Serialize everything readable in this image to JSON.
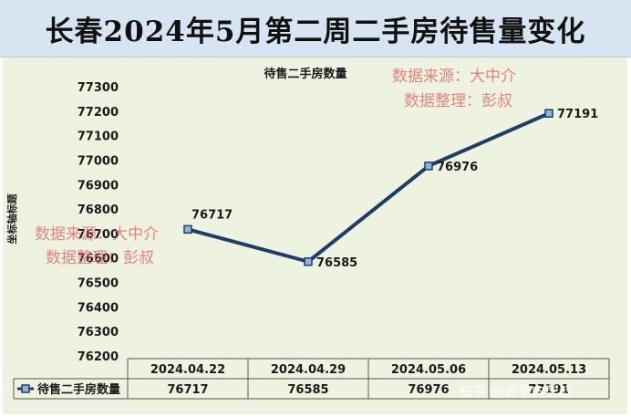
{
  "page_title": "长春2024年5月第二周二手房待售量变化",
  "chart_data": {
    "type": "line",
    "title": "待售二手房数量",
    "ylabel": "坐标轴标题",
    "xlabel": "",
    "categories": [
      "2024.04.22",
      "2024.04.29",
      "2024.05.06",
      "2024.05.13"
    ],
    "series": [
      {
        "name": "待售二手房数量",
        "values": [
          76717,
          76585,
          76976,
          77191
        ],
        "color": "#1f3d66"
      }
    ],
    "ylim": [
      76200,
      77300
    ],
    "yticks": [
      76200,
      76300,
      76400,
      76500,
      76600,
      76700,
      76800,
      76900,
      77000,
      77100,
      77200,
      77300
    ],
    "grid": false,
    "legend": "data-table-left"
  },
  "watermarks": {
    "source_line": "数据来源：大中介",
    "editor_line": "数据整理：彭叔",
    "zhihu": "知乎 @青争向彭叔"
  }
}
